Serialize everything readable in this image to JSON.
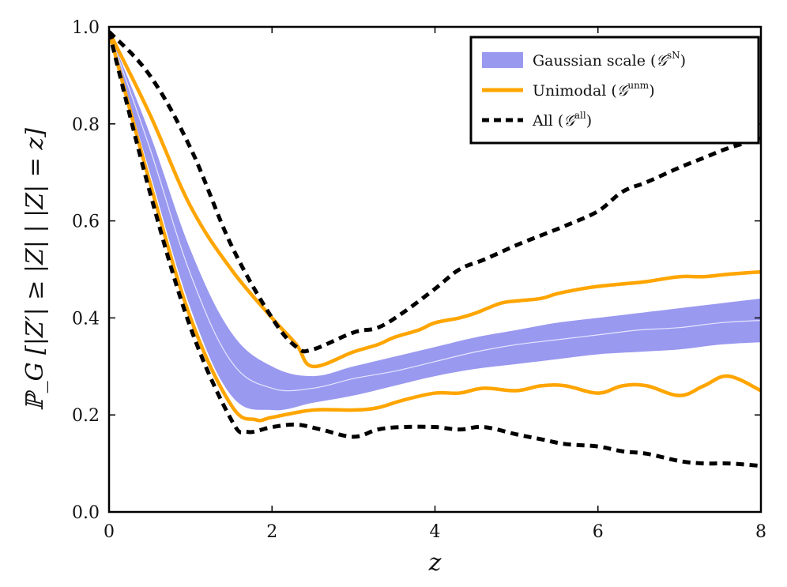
{
  "chart_data": {
    "type": "line",
    "title": "",
    "xlabel": "z",
    "ylabel": "ℙ_G [|Z′| ≥ |Z| | |Z| = z]",
    "xlim": [
      0,
      8
    ],
    "ylim": [
      0,
      1
    ],
    "x_ticks": [
      0,
      2,
      4,
      6,
      8
    ],
    "x_tick_labels": [
      "0",
      "2",
      "4",
      "6",
      "8"
    ],
    "y_ticks": [
      0,
      0.2,
      0.4,
      0.6,
      0.8,
      1.0
    ],
    "y_tick_labels": [
      "0.0",
      "0.2",
      "0.4",
      "0.6",
      "0.8",
      "1.0"
    ],
    "grid": false,
    "legend_position": "top-right",
    "legend": [
      {
        "label": "Gaussian scale (",
        "symbol": "𝒢",
        "sup": "sN",
        "close": ")",
        "style": "band",
        "color": "#9999f0"
      },
      {
        "label": "Unimodal (",
        "symbol": "𝒢",
        "sup": "unm",
        "close": ")",
        "style": "solid",
        "color": "#ffa500"
      },
      {
        "label": "All (",
        "symbol": "𝒢",
        "sup": "all",
        "close": ")",
        "style": "dashed",
        "color": "#000000"
      }
    ],
    "series": [
      {
        "name": "Gaussian scale band upper",
        "role": "band_upper",
        "x": [
          0,
          0.5,
          1.0,
          1.5,
          2.0,
          2.5,
          3.0,
          3.5,
          4.0,
          4.5,
          5.0,
          5.5,
          6.0,
          6.5,
          7.0,
          7.5,
          8.0
        ],
        "values": [
          0.99,
          0.78,
          0.54,
          0.37,
          0.3,
          0.28,
          0.3,
          0.32,
          0.34,
          0.36,
          0.375,
          0.39,
          0.4,
          0.41,
          0.42,
          0.43,
          0.44
        ]
      },
      {
        "name": "Gaussian scale band center",
        "role": "band_center",
        "x": [
          0,
          0.5,
          1.0,
          1.5,
          2.0,
          2.5,
          3.0,
          3.5,
          4.0,
          4.5,
          5.0,
          5.5,
          6.0,
          6.5,
          7.0,
          7.5,
          8.0
        ],
        "values": [
          0.99,
          0.75,
          0.49,
          0.31,
          0.255,
          0.255,
          0.275,
          0.29,
          0.31,
          0.33,
          0.345,
          0.355,
          0.365,
          0.375,
          0.38,
          0.39,
          0.395
        ]
      },
      {
        "name": "Gaussian scale band lower",
        "role": "band_lower",
        "x": [
          0,
          0.5,
          1.0,
          1.5,
          2.0,
          2.5,
          3.0,
          3.5,
          4.0,
          4.5,
          5.0,
          5.5,
          6.0,
          6.5,
          7.0,
          7.5,
          8.0
        ],
        "values": [
          0.99,
          0.7,
          0.42,
          0.24,
          0.21,
          0.225,
          0.24,
          0.26,
          0.28,
          0.295,
          0.305,
          0.315,
          0.325,
          0.33,
          0.335,
          0.345,
          0.35
        ]
      },
      {
        "name": "Unimodal upper",
        "role": "unimodal",
        "x": [
          0,
          0.5,
          1.0,
          1.5,
          2.0,
          2.3,
          2.5,
          3.0,
          3.3,
          3.5,
          3.8,
          4.0,
          4.3,
          4.5,
          4.8,
          5.0,
          5.3,
          5.5,
          5.8,
          6.0,
          6.3,
          6.6,
          7.0,
          7.3,
          7.6,
          8.0
        ],
        "values": [
          0.99,
          0.82,
          0.63,
          0.5,
          0.4,
          0.345,
          0.3,
          0.33,
          0.345,
          0.36,
          0.375,
          0.39,
          0.4,
          0.41,
          0.43,
          0.435,
          0.44,
          0.45,
          0.46,
          0.465,
          0.47,
          0.475,
          0.485,
          0.485,
          0.49,
          0.495
        ]
      },
      {
        "name": "Unimodal lower",
        "role": "unimodal",
        "x": [
          0,
          0.5,
          1.0,
          1.5,
          1.8,
          2.0,
          2.5,
          3.0,
          3.3,
          3.6,
          4.0,
          4.3,
          4.6,
          5.0,
          5.3,
          5.6,
          6.0,
          6.3,
          6.6,
          7.0,
          7.3,
          7.6,
          8.0
        ],
        "values": [
          0.99,
          0.68,
          0.4,
          0.22,
          0.19,
          0.195,
          0.21,
          0.21,
          0.215,
          0.23,
          0.245,
          0.245,
          0.255,
          0.25,
          0.26,
          0.26,
          0.245,
          0.26,
          0.26,
          0.24,
          0.26,
          0.28,
          0.25
        ]
      },
      {
        "name": "All upper",
        "role": "all",
        "x": [
          0,
          0.5,
          1.0,
          1.5,
          2.0,
          2.3,
          2.5,
          3.0,
          3.3,
          3.6,
          4.0,
          4.3,
          4.6,
          5.0,
          5.3,
          5.6,
          6.0,
          6.3,
          6.6,
          7.0,
          7.3,
          7.6,
          8.0
        ],
        "values": [
          0.99,
          0.9,
          0.75,
          0.55,
          0.4,
          0.34,
          0.335,
          0.37,
          0.38,
          0.41,
          0.46,
          0.5,
          0.52,
          0.55,
          0.57,
          0.59,
          0.62,
          0.66,
          0.68,
          0.71,
          0.73,
          0.75,
          0.77
        ]
      },
      {
        "name": "All lower",
        "role": "all",
        "x": [
          0,
          0.5,
          1.0,
          1.5,
          1.7,
          2.0,
          2.3,
          2.6,
          3.0,
          3.3,
          3.6,
          4.0,
          4.3,
          4.6,
          5.0,
          5.3,
          5.6,
          6.0,
          6.3,
          6.6,
          7.0,
          7.3,
          7.6,
          8.0
        ],
        "values": [
          0.99,
          0.66,
          0.38,
          0.19,
          0.165,
          0.175,
          0.18,
          0.17,
          0.155,
          0.17,
          0.175,
          0.175,
          0.17,
          0.175,
          0.16,
          0.15,
          0.14,
          0.135,
          0.125,
          0.12,
          0.105,
          0.1,
          0.1,
          0.095
        ]
      }
    ]
  }
}
